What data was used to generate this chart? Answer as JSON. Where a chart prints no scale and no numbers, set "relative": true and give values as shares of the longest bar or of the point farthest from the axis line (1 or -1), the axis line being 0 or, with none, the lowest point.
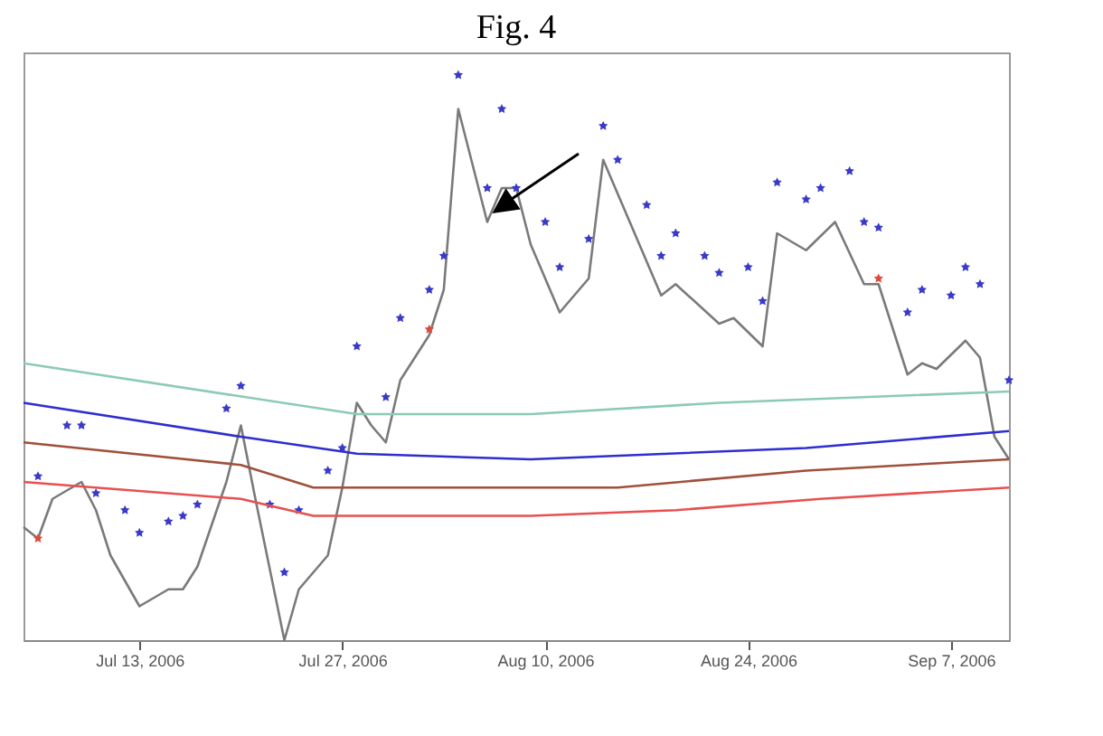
{
  "chart_data": {
    "type": "line",
    "title": "Fig. 4",
    "relative": true,
    "xlim": [
      "2006-07-05",
      "2006-09-11"
    ],
    "xticks": [
      {
        "value": "2006-07-13",
        "label": "Jul 13, 2006"
      },
      {
        "value": "2006-07-27",
        "label": "Jul 27, 2006"
      },
      {
        "value": "2006-08-10",
        "label": "Aug 10, 2006"
      },
      {
        "value": "2006-08-24",
        "label": "Aug 24, 2006"
      },
      {
        "value": "2006-09-07",
        "label": "Sep 7, 2006"
      }
    ],
    "grid": false,
    "tick_labels": "x",
    "series": [
      {
        "color": "#7a7a7a",
        "x": [
          "2006-07-05",
          "2006-07-06",
          "2006-07-07",
          "2006-07-09",
          "2006-07-10",
          "2006-07-11",
          "2006-07-13",
          "2006-07-15",
          "2006-07-16",
          "2006-07-17",
          "2006-07-19",
          "2006-07-20",
          "2006-07-21",
          "2006-07-23",
          "2006-07-24",
          "2006-07-26",
          "2006-07-27",
          "2006-07-28",
          "2006-07-29",
          "2006-07-30",
          "2006-07-31",
          "2006-08-02",
          "2006-08-03",
          "2006-08-04",
          "2006-08-06",
          "2006-08-07",
          "2006-08-08",
          "2006-08-09",
          "2006-08-11",
          "2006-08-13",
          "2006-08-14",
          "2006-08-15",
          "2006-08-18",
          "2006-08-19",
          "2006-08-22",
          "2006-08-23",
          "2006-08-25",
          "2006-08-26",
          "2006-08-28",
          "2006-08-30",
          "2006-09-01",
          "2006-09-02",
          "2006-09-04",
          "2006-09-05",
          "2006-09-06",
          "2006-09-08",
          "2006-09-09",
          "2006-09-10",
          "2006-09-11"
        ],
        "values": [
          0.2,
          0.18,
          0.25,
          0.28,
          0.23,
          0.15,
          0.06,
          0.09,
          0.09,
          0.13,
          0.28,
          0.38,
          0.25,
          0,
          0.09,
          0.15,
          0.27,
          0.42,
          0.38,
          0.35,
          0.46,
          0.54,
          0.62,
          0.94,
          0.74,
          0.8,
          0.8,
          0.7,
          0.58,
          0.64,
          0.85,
          0.79,
          0.61,
          0.63,
          0.56,
          0.57,
          0.52,
          0.72,
          0.69,
          0.74,
          0.63,
          0.63,
          0.47,
          0.49,
          0.48,
          0.53,
          0.5,
          0.36,
          0.32
        ]
      },
      {
        "type": "scatter",
        "color": "#3a3ac8",
        "marker": "star",
        "x": [
          "2006-07-06",
          "2006-07-08",
          "2006-07-09",
          "2006-07-10",
          "2006-07-12",
          "2006-07-13",
          "2006-07-15",
          "2006-07-16",
          "2006-07-17",
          "2006-07-19",
          "2006-07-20",
          "2006-07-22",
          "2006-07-23",
          "2006-07-24",
          "2006-07-26",
          "2006-07-27",
          "2006-07-28",
          "2006-07-30",
          "2006-07-31",
          "2006-08-02",
          "2006-08-03",
          "2006-08-04",
          "2006-08-06",
          "2006-08-07",
          "2006-08-08",
          "2006-08-10",
          "2006-08-11",
          "2006-08-13",
          "2006-08-14",
          "2006-08-15",
          "2006-08-17",
          "2006-08-18",
          "2006-08-19",
          "2006-08-21",
          "2006-08-22",
          "2006-08-24",
          "2006-08-25",
          "2006-08-26",
          "2006-08-28",
          "2006-08-29",
          "2006-08-31",
          "2006-09-01",
          "2006-09-02",
          "2006-09-04",
          "2006-09-05",
          "2006-09-07",
          "2006-09-08",
          "2006-09-09",
          "2006-09-11"
        ],
        "values": [
          0.29,
          0.38,
          0.38,
          0.26,
          0.23,
          0.19,
          0.21,
          0.22,
          0.24,
          0.41,
          0.45,
          0.24,
          0.12,
          0.23,
          0.3,
          0.34,
          0.52,
          0.43,
          0.57,
          0.62,
          0.68,
          1,
          0.8,
          0.94,
          0.8,
          0.74,
          0.66,
          0.71,
          0.91,
          0.85,
          0.77,
          0.68,
          0.72,
          0.68,
          0.65,
          0.66,
          0.6,
          0.81,
          0.78,
          0.8,
          0.83,
          0.74,
          0.73,
          0.58,
          0.62,
          0.61,
          0.66,
          0.63,
          0.46
        ]
      },
      {
        "type": "scatter",
        "color": "#e04a3a",
        "marker": "star",
        "x": [
          "2006-07-06",
          "2006-08-02",
          "2006-09-02"
        ],
        "values": [
          0.18,
          0.55,
          0.64
        ]
      },
      {
        "type": "line",
        "color": "#8ccab8",
        "x": [
          "2006-07-05",
          "2006-07-28",
          "2006-08-09",
          "2006-08-22",
          "2006-09-11"
        ],
        "values": [
          0.49,
          0.4,
          0.4,
          0.42,
          0.44
        ]
      },
      {
        "type": "line",
        "color": "#2e2ed0",
        "x": [
          "2006-07-05",
          "2006-07-20",
          "2006-07-28",
          "2006-08-09",
          "2006-08-28",
          "2006-09-11"
        ],
        "values": [
          0.42,
          0.36,
          0.33,
          0.32,
          0.34,
          0.37
        ]
      },
      {
        "type": "line",
        "color": "#a0503c",
        "x": [
          "2006-07-05",
          "2006-07-20",
          "2006-07-25",
          "2006-08-09",
          "2006-08-15",
          "2006-08-28",
          "2006-09-11"
        ],
        "values": [
          0.35,
          0.31,
          0.27,
          0.27,
          0.27,
          0.3,
          0.32
        ]
      },
      {
        "type": "line",
        "color": "#e85050",
        "x": [
          "2006-07-05",
          "2006-07-20",
          "2006-07-25",
          "2006-08-09",
          "2006-08-19",
          "2006-08-29",
          "2006-09-11"
        ],
        "values": [
          0.28,
          0.25,
          0.22,
          0.22,
          0.23,
          0.25,
          0.27
        ]
      }
    ]
  }
}
